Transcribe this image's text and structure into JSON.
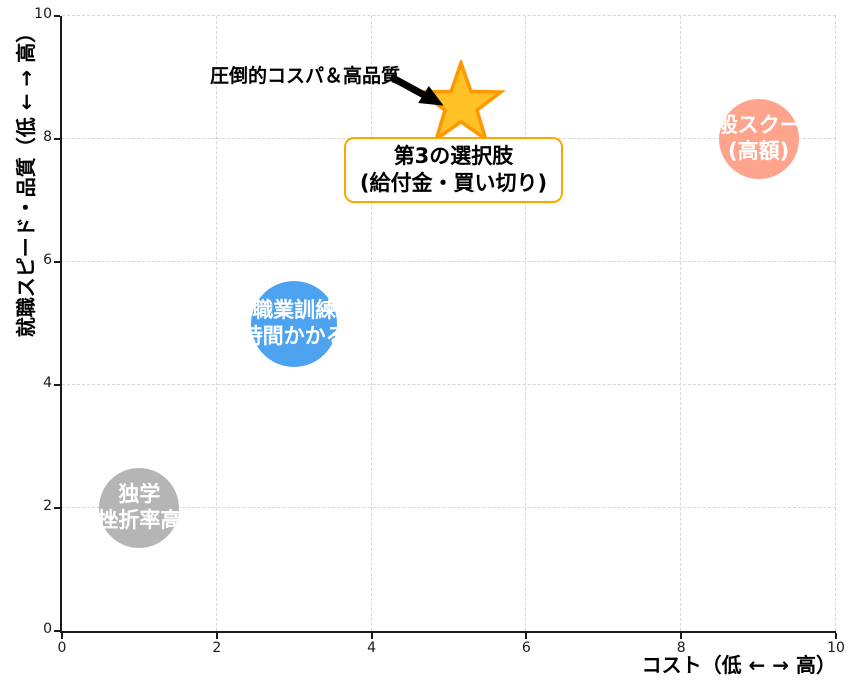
{
  "chart_data": {
    "type": "scatter",
    "title": "",
    "xlabel": "コスト（低 ← → 高）",
    "ylabel": "就職スピード・品質（低 ← → 高）",
    "xlim": [
      0,
      10
    ],
    "ylim": [
      0,
      10
    ],
    "xticks": [
      0,
      2,
      4,
      6,
      8,
      10
    ],
    "yticks": [
      0,
      2,
      4,
      6,
      8,
      10
    ],
    "grid": {
      "style": "dashed",
      "color": "#d6d6d6"
    },
    "legend": "none",
    "points": [
      {
        "name": "dokugaku",
        "x": 1,
        "y": 2,
        "marker": "bubble",
        "r": 40,
        "color": "#b5b5b5",
        "label_lines": [
          "独学",
          "挫折率高"
        ]
      },
      {
        "name": "shokugyo-kunren",
        "x": 3,
        "y": 5,
        "marker": "bubble",
        "r": 43,
        "color": "#4da3f0",
        "label_lines": [
          "職業訓練",
          "時間かかる"
        ]
      },
      {
        "name": "ippan-school",
        "x": 9,
        "y": 8,
        "marker": "bubble",
        "r": 40,
        "color": "#ffa48c",
        "label_lines": [
          "一般スクール",
          "(高額)"
        ]
      },
      {
        "name": "third-option-star",
        "x": 5.15,
        "y": 8.55,
        "marker": "star",
        "color": "#ffc125",
        "edge_color": "#ff9800"
      }
    ],
    "annotations": {
      "callout": {
        "text": "圧倒的コスパ＆高品質",
        "arrow_color": "#000000"
      },
      "box": {
        "lines": [
          "第3の選択肢",
          "(給付金・買い切り)"
        ],
        "border_color": "#ffa500",
        "background": "#ffffff"
      }
    }
  }
}
